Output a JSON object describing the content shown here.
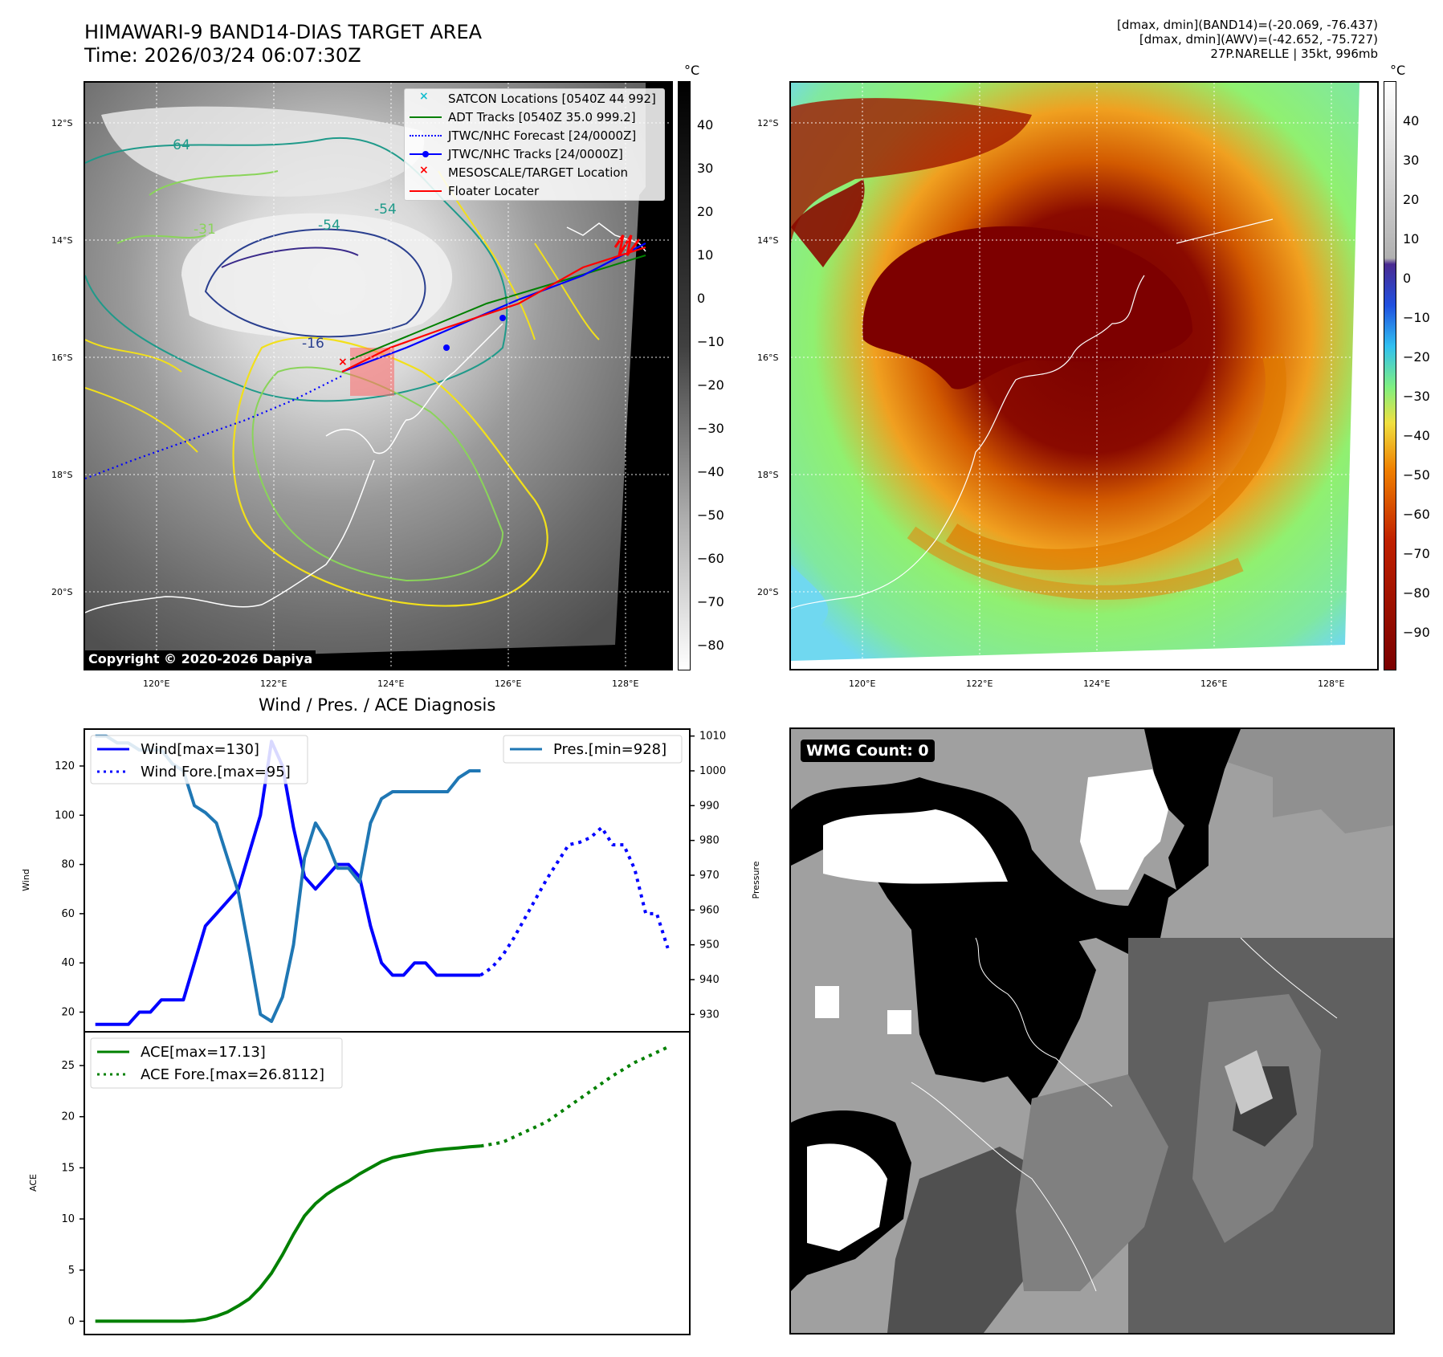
{
  "header": {
    "title_line1": "HIMAWARI-9 BAND14-DIAS TARGET AREA",
    "title_line2": "Time: 2026/03/24 06:07:30Z",
    "info_line1": "[dmax, dmin](BAND14)=(-20.069, -76.437)",
    "info_line2": "[dmax, dmin](AWV)=(-42.652, -75.727)",
    "info_line3": "27P.NARELLE | 35kt, 996mb"
  },
  "maps": {
    "lat_labels": [
      "12°S",
      "14°S",
      "16°S",
      "18°S",
      "20°S"
    ],
    "lon_labels": [
      "120°E",
      "122°E",
      "124°E",
      "126°E",
      "128°E"
    ],
    "contour_labels": [
      "-64",
      "-54",
      "-54",
      "-31",
      "-16"
    ],
    "copyright": "Copyright © 2020-2026 Dapiya",
    "legend": [
      {
        "label": "SATCON Locations [0540Z 44 992]",
        "color": "#17becf",
        "kind": "x"
      },
      {
        "label": "ADT Tracks [0540Z 35.0 999.2]",
        "color": "#008000",
        "kind": "line"
      },
      {
        "label": "JTWC/NHC Forecast [24/0000Z]",
        "color": "#0000ff",
        "kind": "dotted"
      },
      {
        "label": "JTWC/NHC Tracks [24/0000Z]",
        "color": "#0000ff",
        "kind": "line-dot"
      },
      {
        "label": "MESOSCALE/TARGET Location",
        "color": "#ff0000",
        "kind": "x"
      },
      {
        "label": "Floater Locater",
        "color": "#ff0000",
        "kind": "line"
      }
    ],
    "colorbar_unit": "°C",
    "gray_colorbar_ticks": [
      "40",
      "30",
      "20",
      "10",
      "0",
      "−10",
      "−20",
      "−30",
      "−40",
      "−50",
      "−60",
      "−70",
      "−80"
    ],
    "color_colorbar_ticks": [
      "40",
      "30",
      "20",
      "10",
      "0",
      "−10",
      "−20",
      "−30",
      "−40",
      "−50",
      "−60",
      "−70",
      "−80",
      "−90"
    ],
    "wmg_count": "WMG Count: 0"
  },
  "chart_data": [
    {
      "type": "line",
      "title": "Wind / Pres. / ACE Diagnosis",
      "ylabel": "Wind",
      "ylabel_right": "Pressure",
      "ylim": [
        12,
        135
      ],
      "ylim_right": [
        925,
        1012
      ],
      "y_ticks": [
        20,
        40,
        60,
        80,
        100,
        120
      ],
      "y_ticks_right": [
        930,
        940,
        950,
        960,
        970,
        980,
        990,
        1000,
        1010
      ],
      "series": [
        {
          "name": "Wind[max=130]",
          "color": "#0000ff",
          "style": "solid",
          "x": [
            0,
            1,
            2,
            3,
            4,
            5,
            6,
            7,
            8,
            9,
            10,
            11,
            12,
            13,
            14,
            15,
            16,
            17,
            18,
            19,
            20,
            21,
            22,
            23,
            24,
            25,
            26,
            27,
            28,
            29,
            30,
            31,
            32,
            33,
            34,
            35
          ],
          "values": [
            15,
            15,
            15,
            15,
            20,
            20,
            25,
            25,
            25,
            40,
            55,
            60,
            65,
            70,
            85,
            100,
            130,
            120,
            95,
            75,
            70,
            75,
            80,
            80,
            75,
            55,
            40,
            35,
            35,
            40,
            40,
            35,
            35,
            35,
            35,
            35
          ]
        },
        {
          "name": "Wind Fore.[max=95]",
          "color": "#0000ff",
          "style": "dotted",
          "x": [
            35,
            36,
            37,
            38,
            39,
            40,
            41,
            42,
            43,
            44,
            45,
            46,
            47,
            48,
            49,
            50,
            51,
            52
          ],
          "values": [
            35,
            38,
            43,
            50,
            58,
            66,
            74,
            81,
            88,
            89,
            91,
            95,
            88,
            88,
            78,
            60,
            60,
            46
          ]
        },
        {
          "name": "Pres.[min=928]",
          "color": "#1f77b4",
          "style": "solid",
          "axis": "right",
          "x": [
            0,
            1,
            2,
            3,
            4,
            5,
            6,
            7,
            8,
            9,
            10,
            11,
            12,
            13,
            14,
            15,
            16,
            17,
            18,
            19,
            20,
            21,
            22,
            23,
            24,
            25,
            26,
            27,
            28,
            29,
            30,
            31,
            32,
            33,
            34,
            35
          ],
          "values": [
            1010,
            1010,
            1008,
            1008,
            1006,
            1006,
            1006,
            1002,
            1000,
            990,
            988,
            985,
            975,
            965,
            948,
            930,
            928,
            935,
            950,
            975,
            985,
            980,
            972,
            972,
            968,
            985,
            992,
            994,
            994,
            994,
            994,
            994,
            994,
            998,
            1000,
            1000
          ]
        }
      ]
    },
    {
      "type": "line",
      "ylabel": "ACE",
      "ylim": [
        -1.3,
        28.3
      ],
      "y_ticks": [
        0,
        5,
        10,
        15,
        20,
        25
      ],
      "series": [
        {
          "name": "ACE[max=17.13]",
          "color": "#008000",
          "style": "solid",
          "x": [
            0,
            1,
            2,
            3,
            4,
            5,
            6,
            7,
            8,
            9,
            10,
            11,
            12,
            13,
            14,
            15,
            16,
            17,
            18,
            19,
            20,
            21,
            22,
            23,
            24,
            25,
            26,
            27,
            28,
            29,
            30,
            31,
            32,
            33,
            34,
            35
          ],
          "values": [
            0,
            0,
            0,
            0,
            0,
            0,
            0,
            0,
            0,
            0.05,
            0.2,
            0.5,
            0.9,
            1.5,
            2.2,
            3.3,
            4.7,
            6.5,
            8.5,
            10.3,
            11.5,
            12.4,
            13.1,
            13.7,
            14.4,
            15.0,
            15.6,
            16.0,
            16.2,
            16.4,
            16.6,
            16.75,
            16.85,
            16.95,
            17.05,
            17.13
          ]
        },
        {
          "name": "ACE Fore.[max=26.8112]",
          "color": "#008000",
          "style": "dotted",
          "x": [
            35,
            37,
            39,
            41,
            43,
            45,
            47,
            49,
            51,
            52
          ],
          "values": [
            17.13,
            17.5,
            18.5,
            19.5,
            21.0,
            22.5,
            24.0,
            25.3,
            26.3,
            26.8
          ]
        }
      ]
    }
  ]
}
